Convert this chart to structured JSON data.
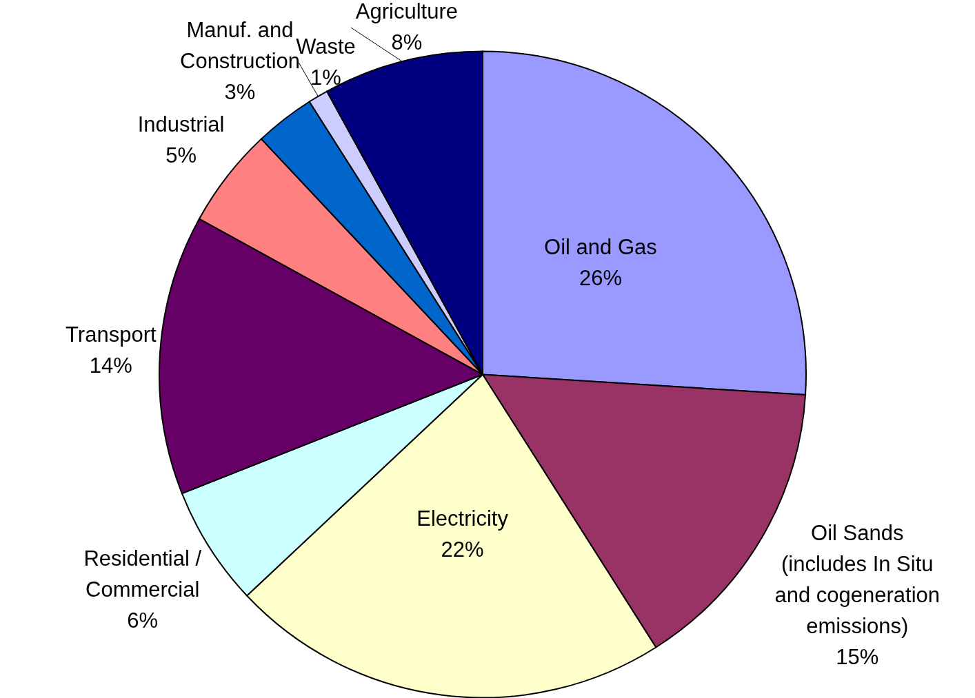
{
  "chart_data": {
    "type": "pie",
    "categories": [
      "Oil and Gas",
      "Oil Sands (includes In Situ and cogeneration emissions)",
      "Electricity",
      "Residential / Commercial",
      "Transport",
      "Industrial",
      "Manuf. and Construction",
      "Waste",
      "Agriculture"
    ],
    "values": [
      26,
      15,
      22,
      6,
      14,
      5,
      3,
      1,
      8
    ],
    "value_labels": [
      "26%",
      "15%",
      "22%",
      "6%",
      "14%",
      "5%",
      "3%",
      "1%",
      "8%"
    ],
    "colors": [
      "#9999ff",
      "#993366",
      "#ffffcc",
      "#ccffff",
      "#660066",
      "#ff8080",
      "#0066cc",
      "#ccccff",
      "#000080"
    ]
  }
}
